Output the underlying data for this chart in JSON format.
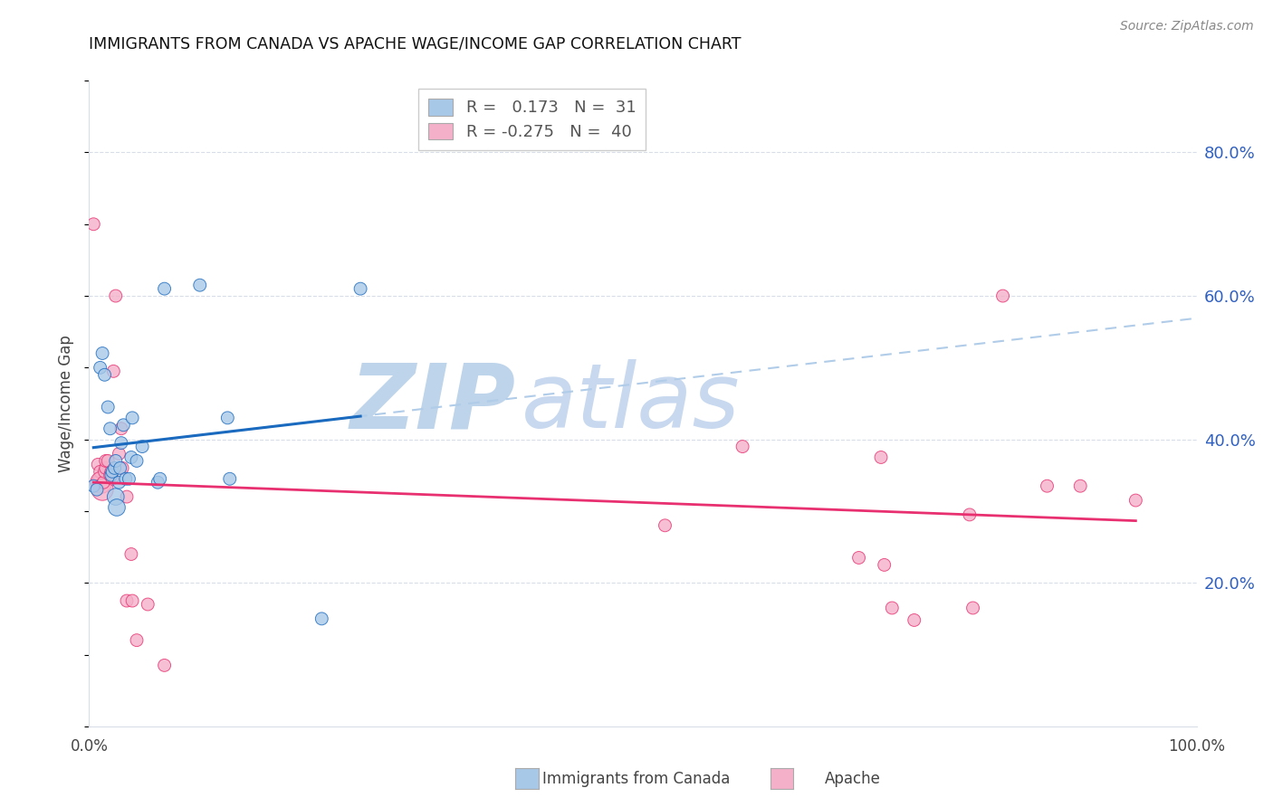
{
  "title": "IMMIGRANTS FROM CANADA VS APACHE WAGE/INCOME GAP CORRELATION CHART",
  "source": "Source: ZipAtlas.com",
  "xlabel_left": "Immigrants from Canada",
  "xlabel_right": "Apache",
  "ylabel": "Wage/Income Gap",
  "xlim": [
    0.0,
    1.0
  ],
  "ylim": [
    0.0,
    0.9
  ],
  "right_yticks": [
    0.2,
    0.4,
    0.6,
    0.8
  ],
  "right_yticklabels": [
    "20.0%",
    "40.0%",
    "60.0%",
    "80.0%"
  ],
  "blue_color": "#a8c8e8",
  "pink_color": "#f4b0c8",
  "blue_line_color": "#1a6abf",
  "pink_line_color": "#e83070",
  "dashed_line_color": "#b0cce8",
  "watermark_zip_color": "#c8d8ee",
  "watermark_atlas_color": "#b8cce0",
  "title_color": "#111111",
  "right_axis_color": "#3060c0",
  "grid_color": "#d8dde8",
  "blue_scatter": [
    [
      0.004,
      0.335
    ],
    [
      0.007,
      0.33
    ],
    [
      0.01,
      0.5
    ],
    [
      0.012,
      0.52
    ],
    [
      0.014,
      0.49
    ],
    [
      0.017,
      0.445
    ],
    [
      0.019,
      0.415
    ],
    [
      0.02,
      0.35
    ],
    [
      0.021,
      0.355
    ],
    [
      0.023,
      0.36
    ],
    [
      0.024,
      0.37
    ],
    [
      0.024,
      0.32
    ],
    [
      0.025,
      0.305
    ],
    [
      0.027,
      0.34
    ],
    [
      0.028,
      0.36
    ],
    [
      0.029,
      0.395
    ],
    [
      0.031,
      0.42
    ],
    [
      0.033,
      0.345
    ],
    [
      0.036,
      0.345
    ],
    [
      0.038,
      0.375
    ],
    [
      0.039,
      0.43
    ],
    [
      0.043,
      0.37
    ],
    [
      0.048,
      0.39
    ],
    [
      0.062,
      0.34
    ],
    [
      0.064,
      0.345
    ],
    [
      0.068,
      0.61
    ],
    [
      0.1,
      0.615
    ],
    [
      0.125,
      0.43
    ],
    [
      0.127,
      0.345
    ],
    [
      0.21,
      0.15
    ],
    [
      0.245,
      0.61
    ]
  ],
  "pink_scatter": [
    [
      0.004,
      0.7
    ],
    [
      0.007,
      0.34
    ],
    [
      0.008,
      0.365
    ],
    [
      0.009,
      0.345
    ],
    [
      0.01,
      0.355
    ],
    [
      0.011,
      0.34
    ],
    [
      0.012,
      0.33
    ],
    [
      0.013,
      0.34
    ],
    [
      0.014,
      0.355
    ],
    [
      0.015,
      0.36
    ],
    [
      0.015,
      0.37
    ],
    [
      0.017,
      0.37
    ],
    [
      0.019,
      0.35
    ],
    [
      0.02,
      0.355
    ],
    [
      0.021,
      0.345
    ],
    [
      0.022,
      0.495
    ],
    [
      0.024,
      0.6
    ],
    [
      0.027,
      0.38
    ],
    [
      0.029,
      0.415
    ],
    [
      0.03,
      0.36
    ],
    [
      0.034,
      0.32
    ],
    [
      0.034,
      0.175
    ],
    [
      0.038,
      0.24
    ],
    [
      0.039,
      0.175
    ],
    [
      0.043,
      0.12
    ],
    [
      0.053,
      0.17
    ],
    [
      0.068,
      0.085
    ],
    [
      0.52,
      0.28
    ],
    [
      0.59,
      0.39
    ],
    [
      0.695,
      0.235
    ],
    [
      0.715,
      0.375
    ],
    [
      0.718,
      0.225
    ],
    [
      0.725,
      0.165
    ],
    [
      0.745,
      0.148
    ],
    [
      0.795,
      0.295
    ],
    [
      0.798,
      0.165
    ],
    [
      0.825,
      0.6
    ],
    [
      0.865,
      0.335
    ],
    [
      0.895,
      0.335
    ],
    [
      0.945,
      0.315
    ]
  ],
  "blue_scatter_sizes": [
    100,
    100,
    100,
    100,
    100,
    100,
    100,
    100,
    100,
    100,
    100,
    180,
    180,
    100,
    100,
    100,
    100,
    100,
    100,
    100,
    100,
    100,
    100,
    100,
    100,
    100,
    100,
    100,
    100,
    100,
    100
  ],
  "pink_scatter_sizes": [
    100,
    100,
    100,
    100,
    100,
    300,
    300,
    100,
    100,
    100,
    100,
    100,
    100,
    100,
    100,
    100,
    100,
    100,
    100,
    100,
    100,
    100,
    100,
    100,
    100,
    100,
    100,
    100,
    100,
    100,
    100,
    100,
    100,
    100,
    100,
    100,
    100,
    100,
    100,
    100
  ]
}
